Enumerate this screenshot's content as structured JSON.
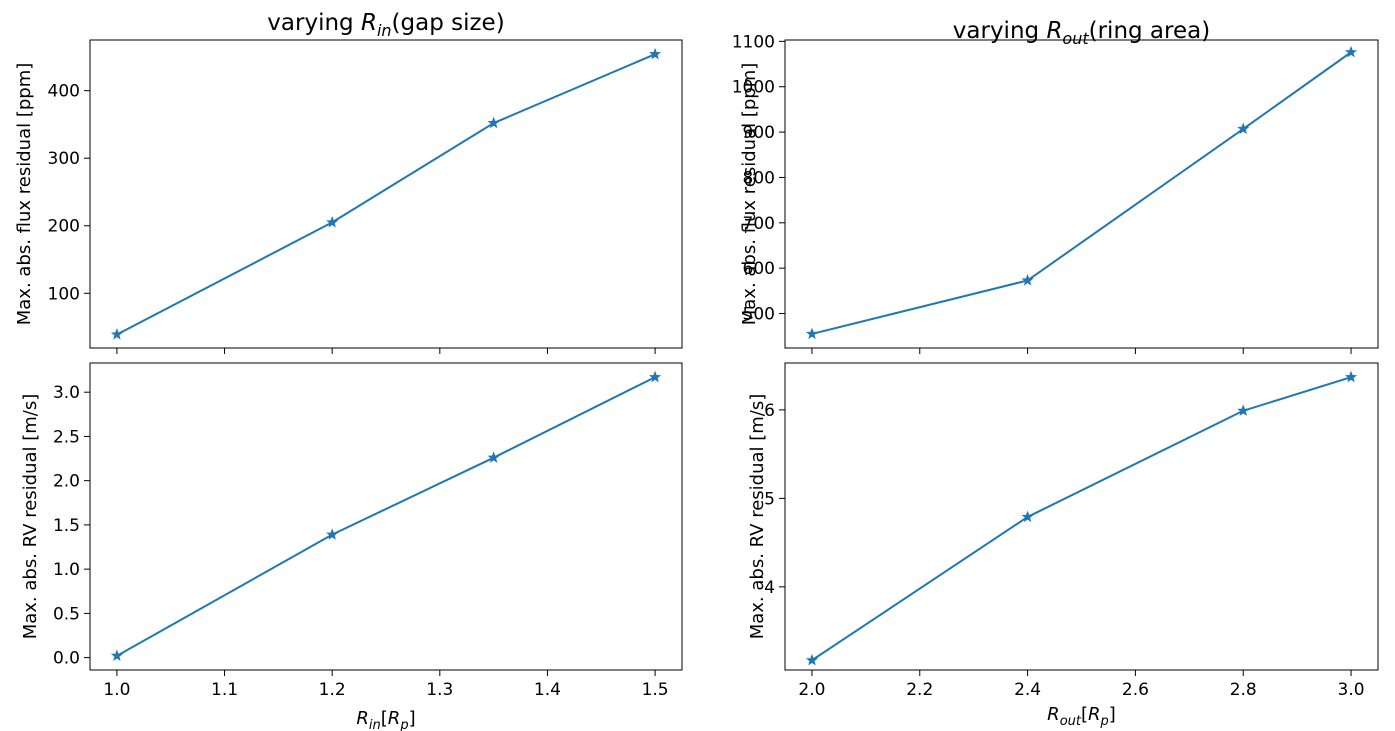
{
  "chart_data": [
    {
      "id": "tl",
      "type": "line",
      "title": "varying R_in(gap size)",
      "title_parts": [
        "varying ",
        "R",
        "in",
        "(gap size)"
      ],
      "xlabel": "",
      "ylabel": "Max. abs. flux residual [ppm]",
      "x": [
        1.0,
        1.2,
        1.35,
        1.5
      ],
      "series": [
        {
          "values": [
            39,
            205,
            352,
            454
          ],
          "color": "#1f77b4",
          "marker": "star"
        }
      ],
      "xlim": [
        0.975,
        1.525
      ],
      "ylim": [
        19,
        475
      ],
      "xticks": [
        1.0,
        1.1,
        1.2,
        1.3,
        1.4,
        1.5
      ],
      "xtick_labels": [],
      "yticks": [
        100,
        200,
        300,
        400
      ],
      "ytick_labels": [
        "100",
        "200",
        "300",
        "400"
      ],
      "grid": false
    },
    {
      "id": "tr",
      "type": "line",
      "title": "varying R_out(ring area)",
      "title_parts": [
        "varying ",
        "R",
        "out",
        "(ring area)"
      ],
      "xlabel": "",
      "ylabel": "Max. abs. flux residual [ppm]",
      "x": [
        2.0,
        2.4,
        2.8,
        3.0
      ],
      "series": [
        {
          "values": [
            455,
            573,
            907,
            1076
          ],
          "color": "#1f77b4",
          "marker": "star"
        }
      ],
      "xlim": [
        1.95,
        3.05
      ],
      "ylim": [
        424,
        1103
      ],
      "xticks": [
        2.0,
        2.2,
        2.4,
        2.6,
        2.8,
        3.0
      ],
      "xtick_labels": [],
      "yticks": [
        500,
        600,
        700,
        800,
        900,
        1000,
        1100
      ],
      "ytick_labels": [
        "500",
        "600",
        "700",
        "800",
        "900",
        "1000",
        "1100"
      ],
      "grid": false
    },
    {
      "id": "bl",
      "type": "line",
      "title": "",
      "xlabel": "R_in[R_p]",
      "xlabel_parts": [
        "R",
        "in",
        "[R",
        "p",
        "]"
      ],
      "ylabel": "Max. abs. RV residual [m/s]",
      "x": [
        1.0,
        1.2,
        1.35,
        1.5
      ],
      "series": [
        {
          "values": [
            0.02,
            1.39,
            2.26,
            3.17
          ],
          "color": "#1f77b4",
          "marker": "star"
        }
      ],
      "xlim": [
        0.975,
        1.525
      ],
      "ylim": [
        -0.14,
        3.33
      ],
      "xticks": [
        1.0,
        1.1,
        1.2,
        1.3,
        1.4,
        1.5
      ],
      "xtick_labels": [
        "1.0",
        "1.1",
        "1.2",
        "1.3",
        "1.4",
        "1.5"
      ],
      "yticks": [
        0.0,
        0.5,
        1.0,
        1.5,
        2.0,
        2.5,
        3.0
      ],
      "ytick_labels": [
        "0.0",
        "0.5",
        "1.0",
        "1.5",
        "2.0",
        "2.5",
        "3.0"
      ],
      "grid": false
    },
    {
      "id": "br",
      "type": "line",
      "title": "",
      "xlabel": "R_out[R_p]",
      "xlabel_parts": [
        "R",
        "out",
        "[R",
        "p",
        "]"
      ],
      "ylabel": "Max. abs. RV residual [m/s]",
      "x": [
        2.0,
        2.4,
        2.8,
        3.0
      ],
      "series": [
        {
          "values": [
            3.17,
            4.79,
            5.99,
            6.37
          ],
          "color": "#1f77b4",
          "marker": "star"
        }
      ],
      "xlim": [
        1.95,
        3.05
      ],
      "ylim": [
        3.06,
        6.53
      ],
      "xticks": [
        2.0,
        2.2,
        2.4,
        2.6,
        2.8,
        3.0
      ],
      "xtick_labels": [
        "2.0",
        "2.2",
        "2.4",
        "2.6",
        "2.8",
        "3.0"
      ],
      "yticks": [
        4,
        5,
        6
      ],
      "ytick_labels": [
        "4",
        "5",
        "6"
      ],
      "grid": false
    }
  ]
}
